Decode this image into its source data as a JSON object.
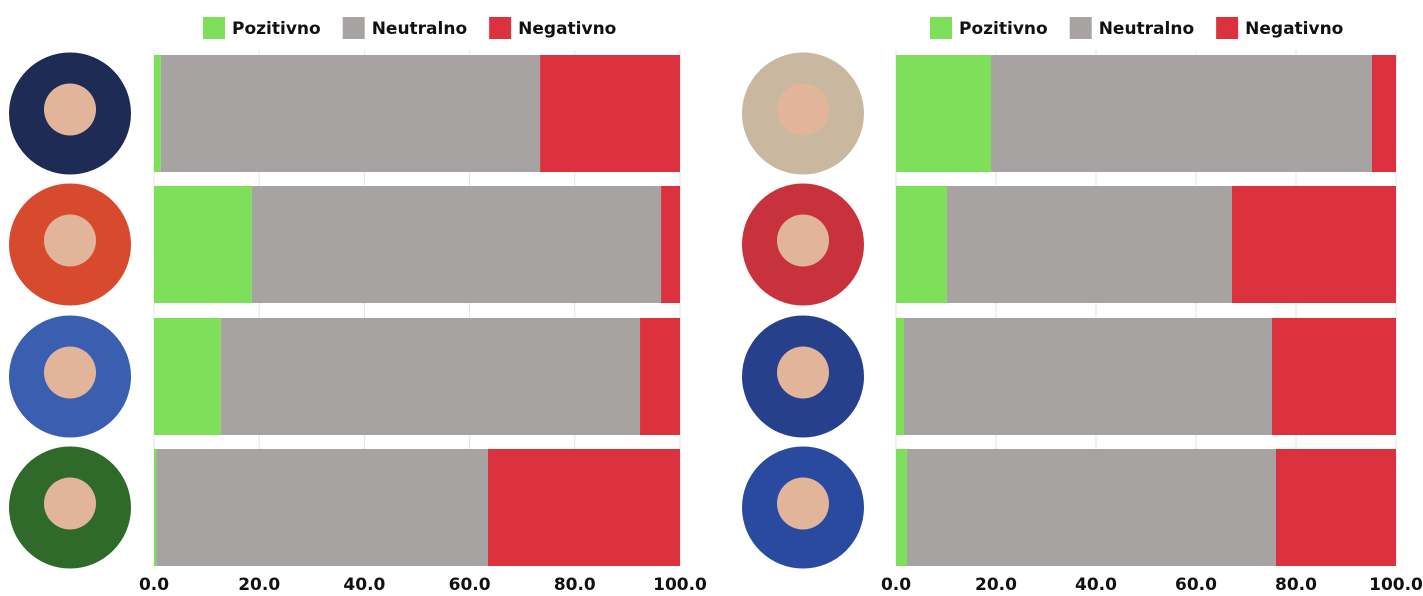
{
  "chart_data": [
    {
      "type": "bar",
      "orientation": "horizontal",
      "stacked": true,
      "categories": [
        null,
        null,
        null,
        null
      ],
      "series": [
        {
          "name": "Pozitivno",
          "color": "#7ee05a",
          "values": [
            1.3,
            18.6,
            12.7,
            0.4
          ]
        },
        {
          "name": "Neutralno",
          "color": "#a7a3a2",
          "values": [
            72.1,
            77.8,
            79.7,
            63.1
          ]
        },
        {
          "name": "Negativno",
          "color": "#dc3240",
          "values": [
            26.6,
            3.6,
            7.6,
            36.5
          ]
        }
      ],
      "xlim": [
        0,
        100
      ],
      "xticks": [
        {
          "value": 0,
          "label": "0.0"
        },
        {
          "value": 20,
          "label": "20.0"
        },
        {
          "value": 40,
          "label": "40.0"
        },
        {
          "value": 60,
          "label": "60.0"
        },
        {
          "value": 80,
          "label": "80.0"
        },
        {
          "value": 100,
          "label": "100.0"
        }
      ],
      "grid": true,
      "legend": "top"
    },
    {
      "type": "bar",
      "orientation": "horizontal",
      "stacked": true,
      "categories": [
        null,
        null,
        null,
        null
      ],
      "series": [
        {
          "name": "Pozitivno",
          "color": "#7ee05a",
          "values": [
            19,
            10.2,
            1.6,
            2.2
          ]
        },
        {
          "name": "Neutralno",
          "color": "#a7a3a2",
          "values": [
            76.2,
            57,
            73.6,
            73.8
          ]
        },
        {
          "name": "Negativno",
          "color": "#dc3240",
          "values": [
            4.8,
            32.8,
            24.8,
            24
          ]
        }
      ],
      "xlim": [
        0,
        100
      ],
      "xticks": [
        {
          "value": 0,
          "label": "0.0"
        },
        {
          "value": 20,
          "label": "20.0"
        },
        {
          "value": 40,
          "label": "40.0"
        },
        {
          "value": 60,
          "label": "60.0"
        },
        {
          "value": 80,
          "label": "80.0"
        },
        {
          "value": 100,
          "label": "100.0"
        }
      ],
      "grid": true,
      "legend": "top"
    }
  ]
}
